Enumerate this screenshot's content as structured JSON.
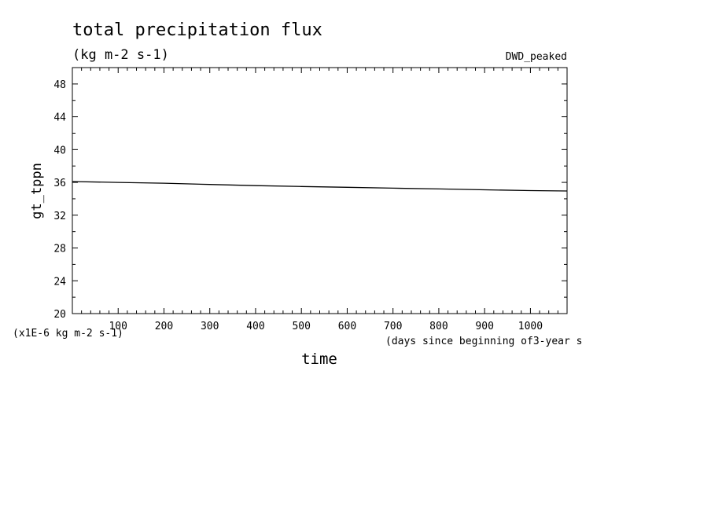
{
  "chart_data": {
    "type": "line",
    "title": "total precipitation flux",
    "subtitle": "(kg m-2 s-1)",
    "run_label": "DWD_peaked",
    "xlabel": "time",
    "x_units": "(days since beginning of3-year s",
    "ylabel": "gt_tppn",
    "y_scale_note": "(x1E-6 kg m-2 s-1)",
    "xlim": [
      0,
      1080
    ],
    "ylim": [
      20,
      50
    ],
    "x_ticks": [
      100,
      200,
      300,
      400,
      500,
      600,
      700,
      800,
      900,
      1000
    ],
    "y_ticks": [
      20,
      24,
      28,
      32,
      36,
      40,
      44,
      48
    ],
    "grid": false,
    "series": [
      {
        "x": [
          0,
          100,
          200,
          300,
          400,
          500,
          600,
          700,
          800,
          900,
          1000,
          1080
        ],
        "y": [
          36.1,
          36.0,
          35.9,
          35.75,
          35.6,
          35.5,
          35.4,
          35.3,
          35.2,
          35.1,
          35.0,
          34.95
        ]
      }
    ]
  }
}
